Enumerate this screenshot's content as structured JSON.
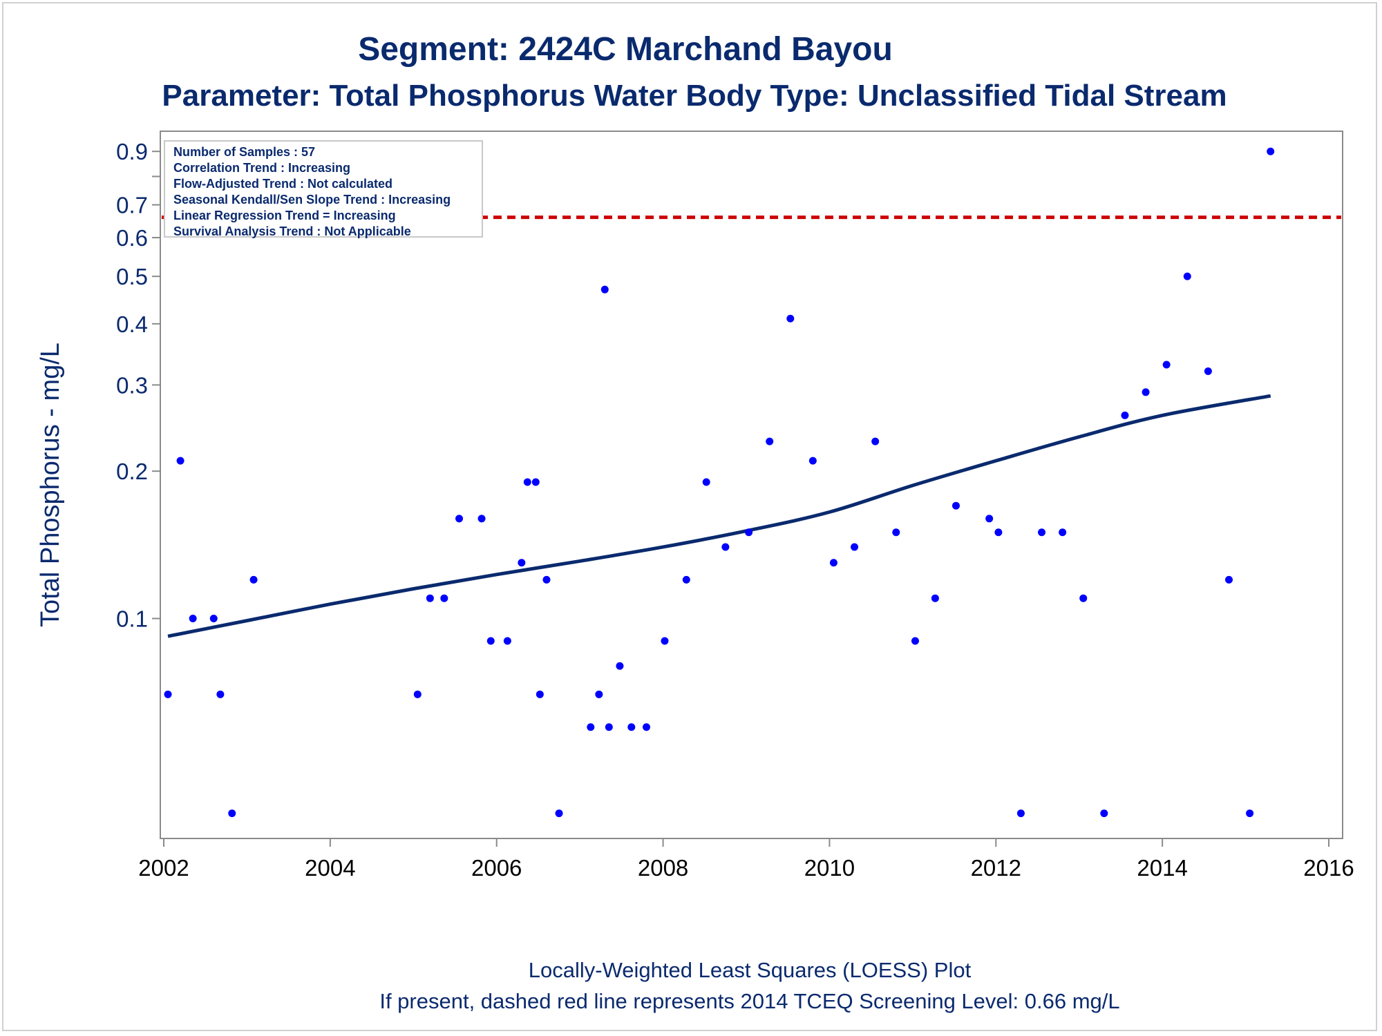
{
  "chart_data": {
    "type": "scatter",
    "title": "Segment: 2424C  Marchand Bayou",
    "subtitle": "Parameter: Total Phosphorus   Water Body Type: Unclassified Tidal Stream",
    "ylabel": "Total Phosphorus - mg/L",
    "xlabel": "",
    "footnotes": [
      "Locally-Weighted Least Squares (LOESS) Plot",
      "If present, dashed red line represents 2014 TCEQ Screening Level: 0.66 mg/L"
    ],
    "y_scale": "log",
    "ylim": [
      0.036,
      0.98
    ],
    "xlim": [
      2002.0,
      2016.0
    ],
    "x_ticks": [
      2002,
      2004,
      2006,
      2008,
      2010,
      2012,
      2014,
      2016
    ],
    "x_tick_labels": [
      "2002",
      "2004",
      "2006",
      "2008",
      "2010",
      "2012",
      "2014",
      "2016"
    ],
    "y_ticks": [
      0.1,
      0.2,
      0.3,
      0.4,
      0.5,
      0.6,
      0.7,
      0.9
    ],
    "y_tick_labels": [
      "0.1",
      "0.2",
      "0.3",
      "0.4",
      "0.5",
      "0.6",
      "0.7",
      "0.9"
    ],
    "y_minor_ticks": [
      0.8
    ],
    "grid": false,
    "info_box": [
      "Number of Samples : 57",
      "Correlation Trend : Increasing",
      "Flow-Adjusted Trend : Not calculated",
      "Seasonal Kendall/Sen Slope Trend : Increasing",
      "Linear Regression Trend = Increasing",
      "Survival Analysis Trend : Not Applicable"
    ],
    "info_box_placement": "top-left",
    "reference_line": {
      "y": 0.66,
      "style": "dashed",
      "color": "#cc0000"
    },
    "series": [
      {
        "type": "scatter",
        "color": "#0000ff",
        "points": [
          [
            2002.05,
            0.07
          ],
          [
            2002.2,
            0.21
          ],
          [
            2002.35,
            0.1
          ],
          [
            2002.6,
            0.1
          ],
          [
            2002.68,
            0.07
          ],
          [
            2002.82,
            0.04
          ],
          [
            2003.08,
            0.12
          ],
          [
            2005.05,
            0.07
          ],
          [
            2005.2,
            0.11
          ],
          [
            2005.37,
            0.11
          ],
          [
            2005.55,
            0.16
          ],
          [
            2005.82,
            0.16
          ],
          [
            2005.93,
            0.09
          ],
          [
            2006.13,
            0.09
          ],
          [
            2006.3,
            0.13
          ],
          [
            2006.37,
            0.19
          ],
          [
            2006.47,
            0.19
          ],
          [
            2006.52,
            0.07
          ],
          [
            2006.6,
            0.12
          ],
          [
            2006.75,
            0.04
          ],
          [
            2007.13,
            0.06
          ],
          [
            2007.23,
            0.07
          ],
          [
            2007.3,
            0.47
          ],
          [
            2007.35,
            0.06
          ],
          [
            2007.48,
            0.08
          ],
          [
            2007.62,
            0.06
          ],
          [
            2007.8,
            0.06
          ],
          [
            2008.02,
            0.09
          ],
          [
            2008.28,
            0.12
          ],
          [
            2008.52,
            0.19
          ],
          [
            2008.75,
            0.14
          ],
          [
            2009.03,
            0.15
          ],
          [
            2009.28,
            0.23
          ],
          [
            2009.53,
            0.41
          ],
          [
            2009.8,
            0.21
          ],
          [
            2010.05,
            0.13
          ],
          [
            2010.3,
            0.14
          ],
          [
            2010.55,
            0.23
          ],
          [
            2010.8,
            0.15
          ],
          [
            2011.03,
            0.09
          ],
          [
            2011.27,
            0.11
          ],
          [
            2011.52,
            0.17
          ],
          [
            2011.92,
            0.16
          ],
          [
            2012.03,
            0.15
          ],
          [
            2012.3,
            0.04
          ],
          [
            2012.55,
            0.15
          ],
          [
            2012.8,
            0.15
          ],
          [
            2013.05,
            0.11
          ],
          [
            2013.3,
            0.04
          ],
          [
            2013.55,
            0.26
          ],
          [
            2013.8,
            0.29
          ],
          [
            2014.05,
            0.33
          ],
          [
            2014.3,
            0.5
          ],
          [
            2014.55,
            0.32
          ],
          [
            2014.8,
            0.12
          ],
          [
            2015.05,
            0.04
          ],
          [
            2015.3,
            0.9
          ]
        ]
      },
      {
        "type": "line",
        "color": "#0a2a6e",
        "points": [
          [
            2002.05,
            0.092
          ],
          [
            2003.0,
            0.099
          ],
          [
            2004.0,
            0.107
          ],
          [
            2005.0,
            0.115
          ],
          [
            2006.0,
            0.123
          ],
          [
            2007.0,
            0.131
          ],
          [
            2008.0,
            0.14
          ],
          [
            2009.0,
            0.151
          ],
          [
            2010.0,
            0.165
          ],
          [
            2011.0,
            0.187
          ],
          [
            2012.0,
            0.21
          ],
          [
            2013.0,
            0.235
          ],
          [
            2014.0,
            0.26
          ],
          [
            2015.3,
            0.285
          ]
        ]
      }
    ]
  }
}
